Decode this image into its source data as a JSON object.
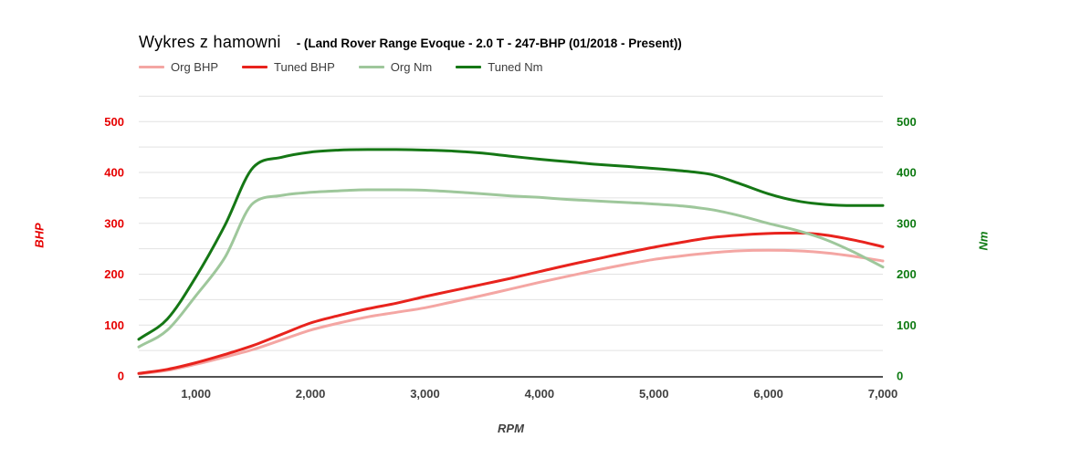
{
  "title": {
    "main": "Wykres z hamowni",
    "subtitle": "- (Land Rover Range Evoque - 2.0 T - 247-BHP (01/2018 - Present))"
  },
  "chart_data": {
    "type": "line",
    "xlabel": "RPM",
    "x_range": [
      500,
      7000
    ],
    "x_ticks": [
      {
        "value": 1000,
        "label": "1,000"
      },
      {
        "value": 2000,
        "label": "2,000"
      },
      {
        "value": 3000,
        "label": "3,000"
      },
      {
        "value": 4000,
        "label": "4,000"
      },
      {
        "value": 5000,
        "label": "5,000"
      },
      {
        "value": 6000,
        "label": "6,000"
      },
      {
        "value": 7000,
        "label": "7,000"
      }
    ],
    "left_axis": {
      "title": "BHP",
      "color": "#e60000",
      "ticks": [
        0,
        100,
        200,
        300,
        400,
        500
      ],
      "range": [
        0,
        550
      ]
    },
    "right_axis": {
      "title": "Nm",
      "color": "#0e7a12",
      "ticks": [
        0,
        100,
        200,
        300,
        400,
        500
      ],
      "range": [
        0,
        550
      ]
    },
    "grid": {
      "step": 50,
      "max": 550,
      "color": "#e2e2e2",
      "axis_color": "#3a3a3a"
    },
    "x": [
      500,
      750,
      1000,
      1250,
      1500,
      1750,
      2000,
      2250,
      2500,
      2750,
      3000,
      3250,
      3500,
      3750,
      4000,
      4250,
      4500,
      4750,
      5000,
      5250,
      5500,
      5750,
      6000,
      6250,
      6500,
      6750,
      7000
    ],
    "series": [
      {
        "name": "Org BHP",
        "color": "#f4a6a3",
        "values": [
          4,
          11,
          23,
          37,
          52,
          71,
          90,
          104,
          116,
          125,
          134,
          146,
          158,
          171,
          184,
          196,
          208,
          219,
          229,
          236,
          242,
          246,
          247,
          246,
          242,
          235,
          226
        ]
      },
      {
        "name": "Tuned BHP",
        "color": "#e8231d",
        "values": [
          5,
          13,
          26,
          42,
          60,
          82,
          104,
          119,
          132,
          143,
          156,
          168,
          180,
          192,
          205,
          218,
          230,
          242,
          253,
          263,
          272,
          277,
          280,
          281,
          277,
          267,
          254
        ]
      },
      {
        "name": "Org Nm",
        "color": "#9ec79b",
        "values": [
          57,
          90,
          158,
          232,
          340,
          355,
          361,
          364,
          366,
          366,
          365,
          362,
          358,
          354,
          351,
          347,
          344,
          341,
          338,
          334,
          327,
          315,
          300,
          286,
          268,
          243,
          214
        ]
      },
      {
        "name": "Tuned Nm",
        "color": "#157715",
        "values": [
          72,
          112,
          195,
          295,
          410,
          430,
          440,
          444,
          445,
          445,
          444,
          442,
          438,
          432,
          426,
          421,
          416,
          412,
          408,
          403,
          396,
          378,
          358,
          344,
          337,
          335,
          335
        ]
      }
    ]
  }
}
